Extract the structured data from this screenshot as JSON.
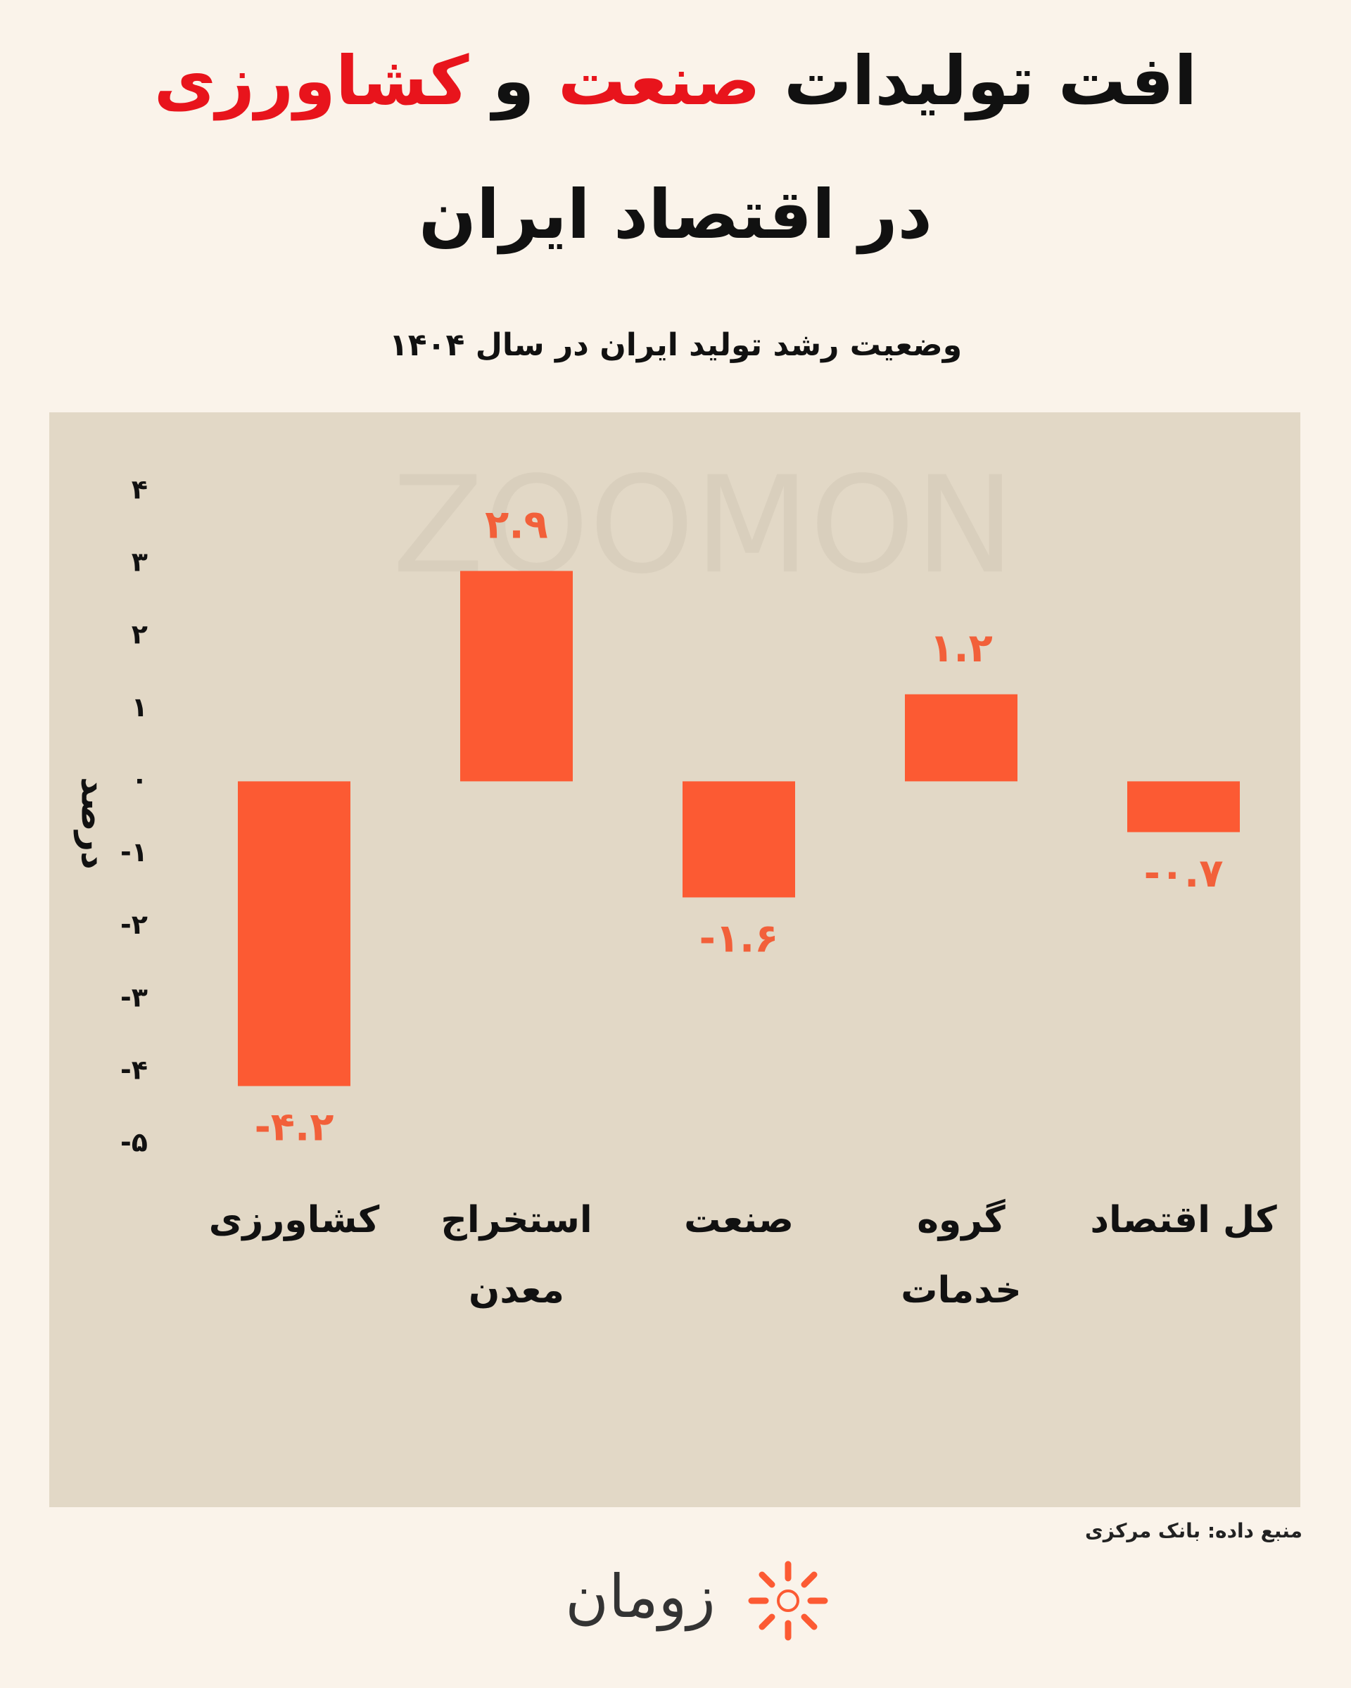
{
  "chart_data": {
    "type": "bar",
    "title": {
      "line1": [
        {
          "text": "افت تولیدات",
          "color": "#111111"
        },
        {
          "text": "صنعت",
          "color": "#e8141c"
        },
        {
          "text": "و",
          "color": "#111111"
        },
        {
          "text": "کشاورزی",
          "color": "#e8141c"
        }
      ],
      "line2": "در اقتصاد ایران"
    },
    "subtitle": "وضعیت رشد تولید ایران در سال ۱۴۰۴",
    "y_label": "درصد",
    "categories": [
      "کشاورزی",
      "استخراج\nمعدن",
      "صنعت",
      "گروه\nخدمات",
      "کل اقتصاد"
    ],
    "values": [
      -4.2,
      2.9,
      -1.6,
      1.2,
      -0.7
    ],
    "value_labels": [
      "-۴.۲",
      "۲.۹",
      "-۱.۶",
      "۱.۲",
      "-۰.۷"
    ],
    "color": "#fc5a33",
    "label_color": "#f2603a",
    "ylim": [
      -5,
      4
    ],
    "yticks": [
      {
        "value": -5,
        "label": "-۵"
      },
      {
        "value": -4,
        "label": "-۴"
      },
      {
        "value": -3,
        "label": "-۳"
      },
      {
        "value": -2,
        "label": "-۲"
      },
      {
        "value": -1,
        "label": "-۱"
      },
      {
        "value": 0,
        "label": "۰"
      },
      {
        "value": 1,
        "label": "۱"
      },
      {
        "value": 2,
        "label": "۲"
      },
      {
        "value": 3,
        "label": "۳"
      },
      {
        "value": 4,
        "label": "۴"
      }
    ],
    "grid": false,
    "watermark": "ZOOMON",
    "source": "منبع داده: بانک مرکزی",
    "logo": "زومان"
  }
}
